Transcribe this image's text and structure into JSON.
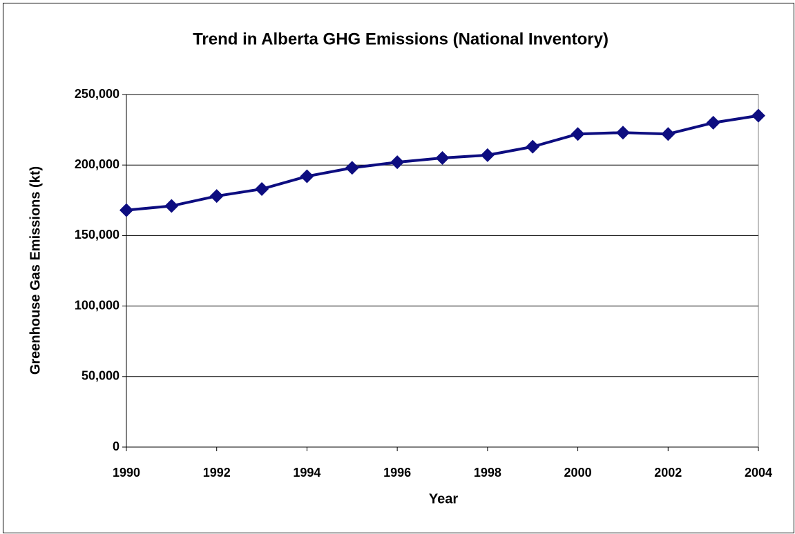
{
  "chart_data": {
    "type": "line",
    "title": "Trend in Alberta GHG Emissions (National Inventory)",
    "x_label": "Year",
    "y_label": "Greenhouse Gas Emissions (kt)",
    "x": [
      1990,
      1991,
      1992,
      1993,
      1994,
      1995,
      1996,
      1997,
      1998,
      1999,
      2000,
      2001,
      2002,
      2003,
      2004
    ],
    "series": [
      {
        "name": "Alberta GHG Emissions",
        "color": "#0d0d80",
        "values": [
          168000,
          171000,
          178000,
          183000,
          192000,
          198000,
          202000,
          205000,
          207000,
          213000,
          222000,
          223000,
          222000,
          230000,
          235000
        ]
      }
    ],
    "xlim": [
      1990,
      2004
    ],
    "xticks": [
      1990,
      1992,
      1994,
      1996,
      1998,
      2000,
      2002,
      2004
    ],
    "ylim": [
      0,
      250000
    ],
    "yticks": [
      0,
      {
        "value": 50000,
        "label": "50,000"
      },
      {
        "value": 100000,
        "label": "100,000"
      },
      {
        "value": 150000,
        "label": "150,000"
      },
      {
        "value": 200000,
        "label": "200,000"
      },
      {
        "value": 250000,
        "label": "250,000"
      }
    ],
    "grid": true
  }
}
